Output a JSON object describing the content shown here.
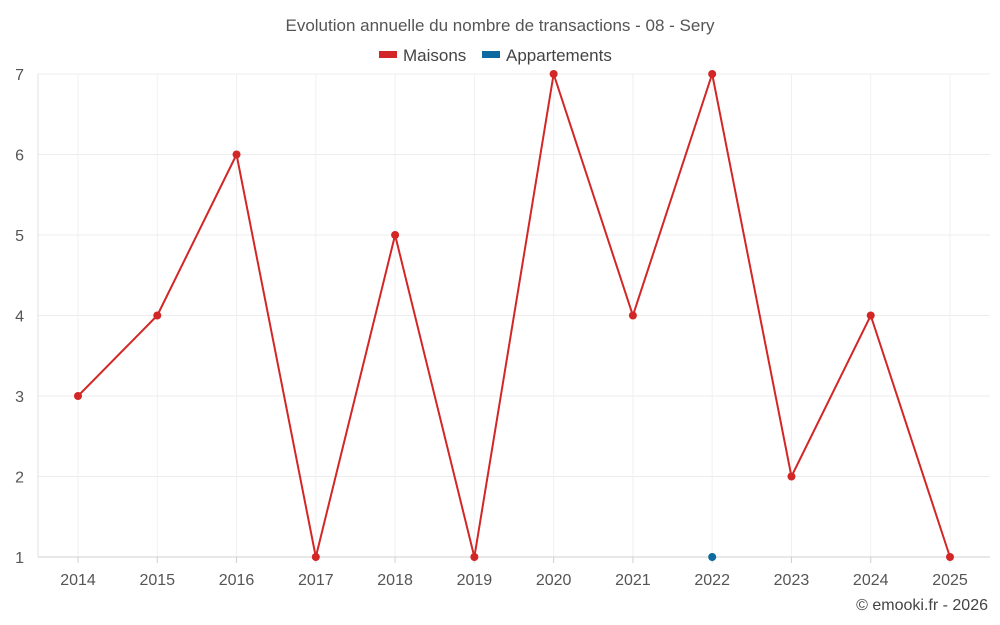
{
  "chart_data": {
    "type": "line",
    "title": "Evolution annuelle du nombre de transactions - 08 - Sery",
    "categories": [
      "2014",
      "2015",
      "2016",
      "2017",
      "2018",
      "2019",
      "2020",
      "2021",
      "2022",
      "2023",
      "2024",
      "2025"
    ],
    "series": [
      {
        "name": "Maisons",
        "color": "#d32626",
        "values": [
          3,
          4,
          6,
          1,
          5,
          1,
          7,
          4,
          7,
          2,
          4,
          1
        ]
      },
      {
        "name": "Appartements",
        "color": "#0d6aa1",
        "values": [
          null,
          null,
          null,
          null,
          null,
          null,
          null,
          null,
          1,
          null,
          null,
          null
        ]
      }
    ],
    "ylim": [
      1,
      7
    ],
    "yticks": [
      "1",
      "2",
      "3",
      "4",
      "5",
      "6",
      "7"
    ],
    "xlabel": "",
    "ylabel": "",
    "legend_position": "top-center",
    "grid": true
  },
  "credit": "© emooki.fr - 2026"
}
